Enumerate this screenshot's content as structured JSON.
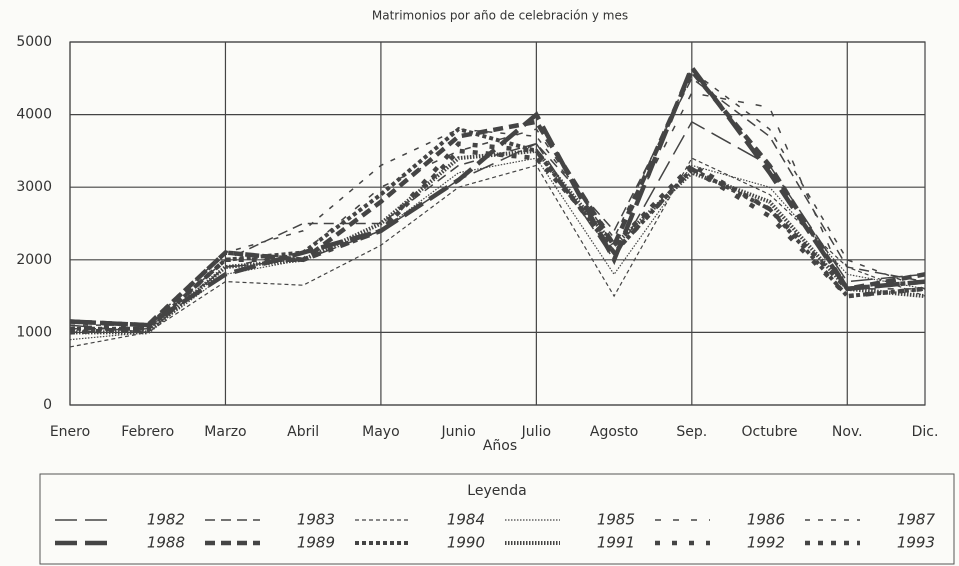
{
  "chart_data": {
    "type": "line",
    "title": "Matrimonios por año de celebración y mes",
    "x_label": "Años",
    "legend_title": "Leyenda",
    "categories": [
      "Enero",
      "Febrero",
      "Marzo",
      "Abril",
      "Mayo",
      "Junio",
      "Julio",
      "Agosto",
      "Sep.",
      "Octubre",
      "Nov.",
      "Dic."
    ],
    "ylim": [
      0,
      5000
    ],
    "yticks": [
      0,
      1000,
      2000,
      3000,
      4000,
      5000
    ],
    "grid": true,
    "series": [
      {
        "name": "1982",
        "color": "#444444",
        "values": [
          1100,
          1000,
          1900,
          2000,
          2400,
          3100,
          3600,
          2000,
          3900,
          3300,
          1700,
          1800
        ]
      },
      {
        "name": "1983",
        "color": "#444444",
        "values": [
          1050,
          1050,
          2000,
          2500,
          2500,
          3300,
          3600,
          2400,
          4500,
          3700,
          1900,
          1700
        ]
      },
      {
        "name": "1984",
        "color": "#444444",
        "values": [
          800,
          1000,
          1700,
          1650,
          2200,
          3000,
          3300,
          1500,
          3400,
          2900,
          1900,
          1500
        ]
      },
      {
        "name": "1985",
        "color": "#444444",
        "values": [
          900,
          1000,
          1800,
          2000,
          2400,
          3200,
          3400,
          1800,
          3300,
          3000,
          1800,
          1600
        ]
      },
      {
        "name": "1986",
        "color": "#444444",
        "values": [
          1000,
          1050,
          1900,
          2100,
          3000,
          3500,
          3800,
          2200,
          4300,
          4100,
          1600,
          1600
        ]
      },
      {
        "name": "1987",
        "color": "#444444",
        "values": [
          1100,
          1100,
          2100,
          2400,
          3300,
          3800,
          3700,
          2300,
          4600,
          3800,
          2000,
          1600
        ]
      },
      {
        "name": "1988",
        "color": "#444444",
        "values": [
          1150,
          1100,
          1800,
          2100,
          2400,
          3100,
          4000,
          2000,
          4650,
          3200,
          1600,
          1700
        ]
      },
      {
        "name": "1989",
        "color": "#444444",
        "values": [
          1150,
          1100,
          2100,
          2000,
          2800,
          3700,
          3900,
          2200,
          4600,
          3300,
          1600,
          1800
        ]
      },
      {
        "name": "1990",
        "color": "#444444",
        "values": [
          1050,
          1050,
          2000,
          2100,
          2900,
          3800,
          3500,
          2100,
          3250,
          2700,
          1500,
          1600
        ]
      },
      {
        "name": "1991",
        "color": "#444444",
        "values": [
          1000,
          1000,
          1900,
          2000,
          2500,
          3400,
          3500,
          2200,
          3200,
          2800,
          1600,
          1500
        ]
      },
      {
        "name": "1992",
        "color": "#444444",
        "values": [
          1050,
          1100,
          2100,
          2000,
          2400,
          3600,
          3500,
          2100,
          3250,
          2600,
          1500,
          1600
        ]
      },
      {
        "name": "1993",
        "color": "#444444",
        "values": [
          1000,
          1050,
          2000,
          2000,
          2400,
          3500,
          3400,
          2200,
          3300,
          2700,
          1600,
          1700
        ]
      }
    ]
  }
}
